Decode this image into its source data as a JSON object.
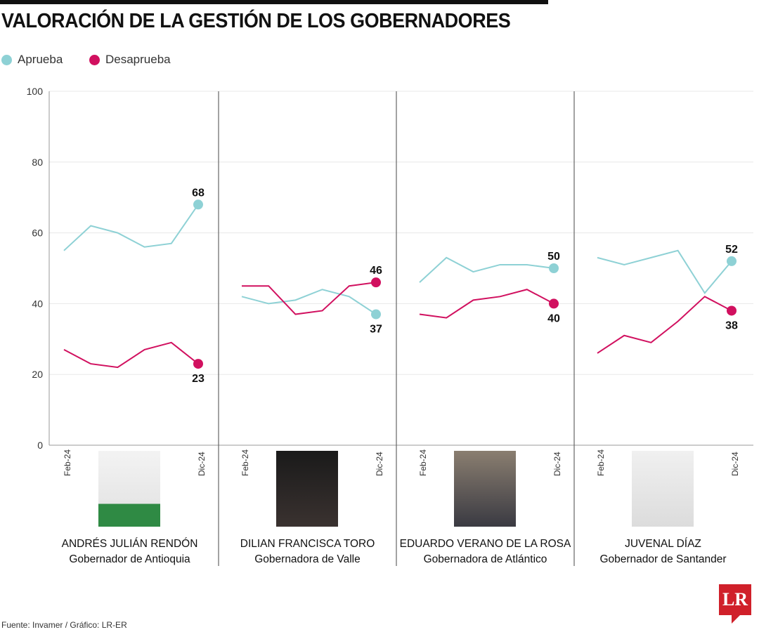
{
  "title": "VALORACIÓN DE LA GESTIÓN DE LOS GOBERNADORES",
  "source": "Fuente: Invamer / Gráfico: LR-ER",
  "logo_text": "LR",
  "colors": {
    "aprueba": "#8ed1d5",
    "desaprueba": "#d1105f"
  },
  "chart_data": {
    "type": "line",
    "ylim": [
      0,
      100
    ],
    "yticks": [
      0,
      20,
      40,
      60,
      80,
      100
    ],
    "grid": true,
    "legend_placement": "top-left",
    "x": [
      "Feb-24",
      "",
      "",
      "",
      "",
      "Dic-24"
    ],
    "xtick_labels": [
      "Feb-24",
      "Dic-24"
    ],
    "legend": [
      "Aprueba",
      "Desaprueba"
    ],
    "panels": [
      {
        "name": "ANDRÉS JULIÁN RENDÓN",
        "role": "Gobernador de Antioquia",
        "series": [
          {
            "name": "Aprueba",
            "values": [
              55,
              62,
              60,
              56,
              57,
              68
            ]
          },
          {
            "name": "Desaprueba",
            "values": [
              27,
              23,
              22,
              27,
              29,
              23
            ]
          }
        ]
      },
      {
        "name": "DILIAN FRANCISCA TORO",
        "role": "Gobernadora de Valle",
        "series": [
          {
            "name": "Aprueba",
            "values": [
              42,
              40,
              41,
              44,
              42,
              37
            ]
          },
          {
            "name": "Desaprueba",
            "values": [
              45,
              45,
              37,
              38,
              45,
              46
            ]
          }
        ]
      },
      {
        "name": "EDUARDO VERANO DE LA ROSA",
        "role": "Gobernadora de Atlántico",
        "series": [
          {
            "name": "Aprueba",
            "values": [
              46,
              53,
              49,
              51,
              51,
              50
            ]
          },
          {
            "name": "Desaprueba",
            "values": [
              37,
              36,
              41,
              42,
              44,
              40
            ]
          }
        ]
      },
      {
        "name": "JUVENAL DÍAZ",
        "role": "Gobernador de Santander",
        "series": [
          {
            "name": "Aprueba",
            "values": [
              53,
              51,
              53,
              55,
              43,
              52
            ]
          },
          {
            "name": "Desaprueba",
            "values": [
              26,
              31,
              29,
              35,
              42,
              38
            ]
          }
        ]
      }
    ]
  }
}
